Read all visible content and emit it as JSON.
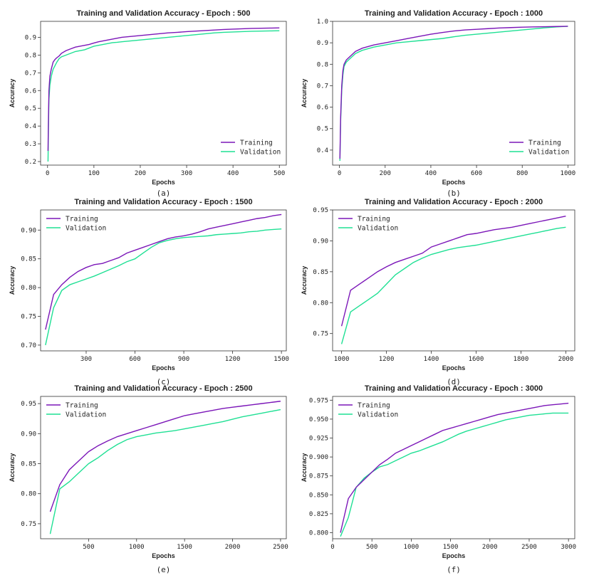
{
  "colors": {
    "training": "#7B16B8",
    "validation": "#1FE094"
  },
  "chart_data": [
    {
      "type": "line",
      "panel": "(a)",
      "title": "Training and Validation Accuracy - Epoch : 500",
      "xlabel": "Epochs",
      "ylabel": "Accuracy",
      "xlim": [
        -15,
        515
      ],
      "ylim": [
        0.18,
        0.99
      ],
      "xticks": [
        0,
        100,
        200,
        300,
        400,
        500
      ],
      "yticks": [
        0.2,
        0.3,
        0.4,
        0.5,
        0.6,
        0.7,
        0.8,
        0.9
      ],
      "ytick_labels": [
        "0.2",
        "0.3",
        "0.4",
        "0.5",
        "0.6",
        "0.7",
        "0.8",
        "0.9"
      ],
      "legend_position": "bottom-right",
      "series": [
        {
          "name": "Training",
          "x": [
            1,
            2,
            3,
            5,
            8,
            12,
            16,
            20,
            25,
            30,
            40,
            50,
            60,
            70,
            80,
            90,
            100,
            110,
            120,
            130,
            140,
            150,
            160,
            180,
            200,
            220,
            240,
            260,
            280,
            300,
            320,
            340,
            360,
            380,
            400,
            420,
            440,
            460,
            480,
            500
          ],
          "y": [
            0.26,
            0.45,
            0.6,
            0.68,
            0.72,
            0.76,
            0.775,
            0.785,
            0.795,
            0.81,
            0.825,
            0.835,
            0.845,
            0.85,
            0.855,
            0.86,
            0.868,
            0.875,
            0.88,
            0.885,
            0.89,
            0.895,
            0.9,
            0.905,
            0.91,
            0.915,
            0.92,
            0.925,
            0.928,
            0.932,
            0.935,
            0.938,
            0.941,
            0.944,
            0.946,
            0.948,
            0.95,
            0.951,
            0.952,
            0.953
          ]
        },
        {
          "name": "Validation",
          "x": [
            1,
            2,
            3,
            5,
            8,
            12,
            16,
            20,
            25,
            30,
            40,
            50,
            60,
            70,
            80,
            90,
            100,
            110,
            120,
            130,
            140,
            150,
            160,
            180,
            200,
            220,
            240,
            260,
            280,
            300,
            320,
            340,
            360,
            380,
            400,
            420,
            440,
            460,
            480,
            500
          ],
          "y": [
            0.2,
            0.4,
            0.55,
            0.63,
            0.68,
            0.72,
            0.74,
            0.76,
            0.78,
            0.79,
            0.8,
            0.81,
            0.82,
            0.825,
            0.83,
            0.84,
            0.85,
            0.855,
            0.86,
            0.865,
            0.87,
            0.872,
            0.875,
            0.88,
            0.885,
            0.89,
            0.895,
            0.9,
            0.905,
            0.91,
            0.915,
            0.92,
            0.925,
            0.928,
            0.93,
            0.932,
            0.934,
            0.935,
            0.936,
            0.937
          ]
        }
      ]
    },
    {
      "type": "line",
      "panel": "(b)",
      "title": "Training and Validation Accuracy - Epoch : 1000",
      "xlabel": "Epochs",
      "ylabel": "Accuracy",
      "xlim": [
        -30,
        1030
      ],
      "ylim": [
        0.33,
        1.0
      ],
      "xticks": [
        0,
        200,
        400,
        600,
        800,
        1000
      ],
      "yticks": [
        0.4,
        0.5,
        0.6,
        0.7,
        0.8,
        0.9,
        1.0
      ],
      "ytick_labels": [
        "0.4",
        "0.5",
        "0.6",
        "0.7",
        "0.8",
        "0.9",
        "1.0"
      ],
      "legend_position": "bottom-right",
      "series": [
        {
          "name": "Training",
          "x": [
            2,
            5,
            10,
            15,
            20,
            30,
            40,
            50,
            70,
            100,
            150,
            200,
            250,
            300,
            350,
            400,
            450,
            500,
            550,
            600,
            650,
            700,
            750,
            800,
            850,
            900,
            950,
            1000
          ],
          "y": [
            0.36,
            0.55,
            0.7,
            0.77,
            0.8,
            0.82,
            0.83,
            0.84,
            0.86,
            0.875,
            0.89,
            0.9,
            0.91,
            0.92,
            0.93,
            0.94,
            0.948,
            0.955,
            0.96,
            0.963,
            0.966,
            0.969,
            0.971,
            0.973,
            0.974,
            0.975,
            0.976,
            0.977
          ]
        },
        {
          "name": "Validation",
          "x": [
            2,
            5,
            10,
            15,
            20,
            30,
            40,
            50,
            70,
            100,
            150,
            200,
            250,
            300,
            350,
            400,
            450,
            500,
            550,
            600,
            650,
            700,
            750,
            800,
            850,
            900,
            950,
            1000
          ],
          "y": [
            0.35,
            0.53,
            0.68,
            0.75,
            0.79,
            0.81,
            0.82,
            0.83,
            0.85,
            0.865,
            0.88,
            0.89,
            0.9,
            0.905,
            0.91,
            0.915,
            0.92,
            0.928,
            0.935,
            0.94,
            0.945,
            0.95,
            0.955,
            0.96,
            0.965,
            0.97,
            0.974,
            0.977
          ]
        }
      ]
    },
    {
      "type": "line",
      "panel": "(c)",
      "title": "Training and Validation Accuracy - Epoch : 1500",
      "xlabel": "Epochs",
      "ylabel": "Accuracy",
      "xlim": [
        20,
        1530
      ],
      "ylim": [
        0.69,
        0.935
      ],
      "xticks": [
        300,
        600,
        900,
        1200,
        1500
      ],
      "yticks": [
        0.7,
        0.75,
        0.8,
        0.85,
        0.9
      ],
      "ytick_labels": [
        "0.70",
        "0.75",
        "0.80",
        "0.85",
        "0.90"
      ],
      "legend_position": "top-left",
      "series": [
        {
          "name": "Training",
          "x": [
            50,
            100,
            150,
            200,
            250,
            300,
            350,
            400,
            450,
            500,
            550,
            600,
            650,
            700,
            750,
            800,
            850,
            900,
            950,
            1000,
            1050,
            1100,
            1150,
            1200,
            1250,
            1300,
            1350,
            1400,
            1450,
            1500
          ],
          "y": [
            0.727,
            0.788,
            0.805,
            0.818,
            0.828,
            0.835,
            0.84,
            0.842,
            0.847,
            0.852,
            0.86,
            0.865,
            0.87,
            0.875,
            0.88,
            0.885,
            0.888,
            0.89,
            0.893,
            0.897,
            0.902,
            0.905,
            0.908,
            0.911,
            0.914,
            0.917,
            0.92,
            0.922,
            0.925,
            0.927
          ]
        },
        {
          "name": "Validation",
          "x": [
            50,
            100,
            150,
            200,
            250,
            300,
            350,
            400,
            450,
            500,
            550,
            600,
            650,
            700,
            750,
            800,
            850,
            900,
            950,
            1000,
            1050,
            1100,
            1150,
            1200,
            1250,
            1300,
            1350,
            1400,
            1450,
            1500
          ],
          "y": [
            0.7,
            0.765,
            0.795,
            0.805,
            0.81,
            0.815,
            0.82,
            0.826,
            0.832,
            0.838,
            0.845,
            0.85,
            0.86,
            0.87,
            0.878,
            0.882,
            0.885,
            0.887,
            0.888,
            0.889,
            0.89,
            0.892,
            0.893,
            0.894,
            0.895,
            0.897,
            0.898,
            0.9,
            0.901,
            0.902
          ]
        }
      ]
    },
    {
      "type": "line",
      "panel": "(d)",
      "title": "Training and Validation Accuracy - Epoch : 2000",
      "xlabel": "Epochs",
      "ylabel": "Accuracy",
      "xlim": [
        960,
        2040
      ],
      "ylim": [
        0.722,
        0.95
      ],
      "xticks": [
        1000,
        1200,
        1400,
        1600,
        1800,
        2000
      ],
      "yticks": [
        0.75,
        0.8,
        0.85,
        0.9,
        0.95
      ],
      "ytick_labels": [
        "0.75",
        "0.80",
        "0.85",
        "0.90",
        "0.95"
      ],
      "legend_position": "top-left",
      "series": [
        {
          "name": "Training",
          "x": [
            1000,
            1040,
            1080,
            1120,
            1160,
            1200,
            1240,
            1280,
            1320,
            1360,
            1400,
            1440,
            1480,
            1520,
            1560,
            1600,
            1640,
            1680,
            1720,
            1760,
            1800,
            1840,
            1880,
            1920,
            1960,
            2000
          ],
          "y": [
            0.762,
            0.82,
            0.83,
            0.84,
            0.85,
            0.858,
            0.865,
            0.87,
            0.875,
            0.88,
            0.89,
            0.895,
            0.9,
            0.905,
            0.91,
            0.912,
            0.915,
            0.918,
            0.92,
            0.922,
            0.925,
            0.928,
            0.931,
            0.934,
            0.937,
            0.94
          ]
        },
        {
          "name": "Validation",
          "x": [
            1000,
            1040,
            1080,
            1120,
            1160,
            1200,
            1240,
            1280,
            1320,
            1360,
            1400,
            1440,
            1480,
            1520,
            1560,
            1600,
            1640,
            1680,
            1720,
            1760,
            1800,
            1840,
            1880,
            1920,
            1960,
            2000
          ],
          "y": [
            0.733,
            0.785,
            0.795,
            0.805,
            0.815,
            0.83,
            0.845,
            0.855,
            0.865,
            0.872,
            0.878,
            0.882,
            0.886,
            0.889,
            0.891,
            0.893,
            0.896,
            0.899,
            0.902,
            0.905,
            0.908,
            0.911,
            0.914,
            0.917,
            0.92,
            0.922
          ]
        }
      ]
    },
    {
      "type": "line",
      "panel": "(e)",
      "title": "Training and Validation Accuracy - Epoch : 2500",
      "xlabel": "Epochs",
      "ylabel": "Accuracy",
      "xlim": [
        0,
        2560
      ],
      "ylim": [
        0.725,
        0.962
      ],
      "xticks": [
        500,
        1000,
        1500,
        2000,
        2500
      ],
      "yticks": [
        0.75,
        0.8,
        0.85,
        0.9,
        0.95
      ],
      "ytick_labels": [
        "0.75",
        "0.80",
        "0.85",
        "0.90",
        "0.95"
      ],
      "legend_position": "top-left",
      "series": [
        {
          "name": "Training",
          "x": [
            100,
            200,
            300,
            400,
            500,
            600,
            700,
            800,
            900,
            1000,
            1100,
            1200,
            1300,
            1400,
            1500,
            1600,
            1700,
            1800,
            1900,
            2000,
            2100,
            2200,
            2300,
            2400,
            2500
          ],
          "y": [
            0.77,
            0.815,
            0.84,
            0.855,
            0.87,
            0.88,
            0.888,
            0.895,
            0.9,
            0.905,
            0.91,
            0.915,
            0.92,
            0.925,
            0.93,
            0.933,
            0.936,
            0.939,
            0.942,
            0.944,
            0.946,
            0.948,
            0.95,
            0.952,
            0.954
          ]
        },
        {
          "name": "Validation",
          "x": [
            100,
            200,
            300,
            400,
            500,
            600,
            700,
            800,
            900,
            1000,
            1100,
            1200,
            1300,
            1400,
            1500,
            1600,
            1700,
            1800,
            1900,
            2000,
            2100,
            2200,
            2300,
            2400,
            2500
          ],
          "y": [
            0.733,
            0.808,
            0.82,
            0.835,
            0.85,
            0.86,
            0.872,
            0.882,
            0.89,
            0.895,
            0.898,
            0.901,
            0.903,
            0.905,
            0.908,
            0.911,
            0.914,
            0.917,
            0.92,
            0.924,
            0.928,
            0.931,
            0.934,
            0.937,
            0.94
          ]
        }
      ]
    },
    {
      "type": "line",
      "panel": "(f)",
      "title": "Training and Validation Accuracy - Epoch : 3000",
      "xlabel": "Epochs",
      "ylabel": "Accuracy",
      "xlim": [
        0,
        3080
      ],
      "ylim": [
        0.792,
        0.98
      ],
      "xticks": [
        0,
        500,
        1000,
        1500,
        2000,
        2500,
        3000
      ],
      "yticks": [
        0.8,
        0.825,
        0.85,
        0.875,
        0.9,
        0.925,
        0.95,
        0.975
      ],
      "ytick_labels": [
        "0.800",
        "0.825",
        "0.850",
        "0.875",
        "0.900",
        "0.925",
        "0.950",
        "0.975"
      ],
      "legend_position": "top-left",
      "series": [
        {
          "name": "Training",
          "x": [
            100,
            200,
            300,
            400,
            500,
            600,
            700,
            800,
            900,
            1000,
            1100,
            1200,
            1300,
            1400,
            1500,
            1600,
            1700,
            1800,
            1900,
            2000,
            2100,
            2200,
            2300,
            2400,
            2500,
            2600,
            2700,
            2800,
            2900,
            3000
          ],
          "y": [
            0.8,
            0.845,
            0.86,
            0.87,
            0.88,
            0.89,
            0.897,
            0.905,
            0.91,
            0.915,
            0.92,
            0.925,
            0.93,
            0.935,
            0.938,
            0.941,
            0.944,
            0.947,
            0.95,
            0.953,
            0.956,
            0.958,
            0.96,
            0.962,
            0.964,
            0.966,
            0.968,
            0.969,
            0.97,
            0.971
          ]
        },
        {
          "name": "Validation",
          "x": [
            100,
            200,
            300,
            400,
            500,
            600,
            700,
            800,
            900,
            1000,
            1100,
            1200,
            1300,
            1400,
            1500,
            1600,
            1700,
            1800,
            1900,
            2000,
            2100,
            2200,
            2300,
            2400,
            2500,
            2600,
            2700,
            2800,
            2900,
            3000
          ],
          "y": [
            0.795,
            0.82,
            0.86,
            0.872,
            0.88,
            0.887,
            0.89,
            0.895,
            0.9,
            0.905,
            0.908,
            0.912,
            0.916,
            0.92,
            0.925,
            0.93,
            0.934,
            0.937,
            0.94,
            0.943,
            0.946,
            0.949,
            0.951,
            0.953,
            0.955,
            0.956,
            0.957,
            0.958,
            0.958,
            0.958
          ]
        }
      ]
    }
  ]
}
